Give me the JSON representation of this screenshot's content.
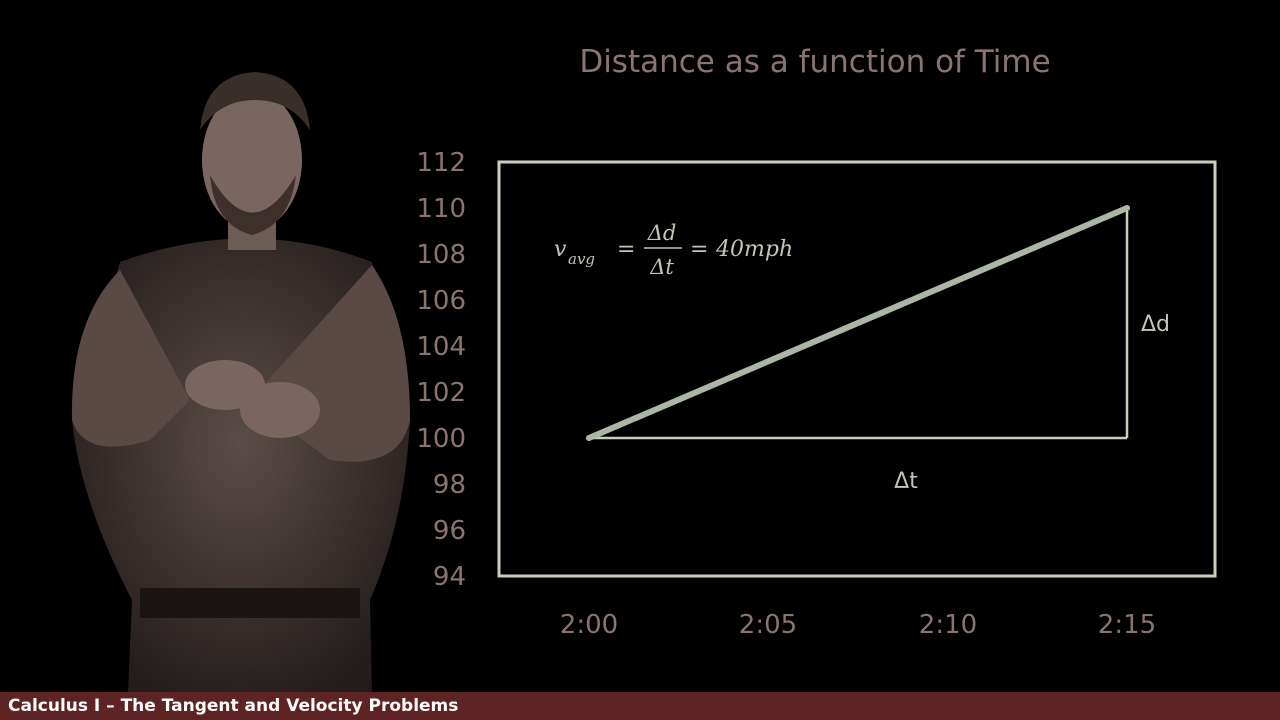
{
  "chart_data": {
    "type": "line",
    "title": "Distance as a function of Time",
    "xlabel": "",
    "ylabel": "",
    "x_ticks": [
      "2:00",
      "2:05",
      "2:10",
      "2:15"
    ],
    "y_ticks": [
      94,
      96,
      98,
      100,
      102,
      104,
      106,
      108,
      110,
      112
    ],
    "ylim": [
      94,
      112
    ],
    "grid": false,
    "series": [
      {
        "x": [
          "2:00",
          "2:15"
        ],
        "y": [
          100,
          110
        ],
        "color": "#a9b7a4"
      }
    ],
    "delta_t_label": "Δt",
    "delta_d_label": "Δd",
    "formula": {
      "lhs": "v",
      "subscript": "avg",
      "equals1": "=",
      "numerator": "Δd",
      "denominator": "Δt",
      "equals2": "=",
      "result": "40mph"
    }
  },
  "caption": "Calculus I – The Tangent and Velocity Problems",
  "colors": {
    "background": "#000000",
    "plot_frame": "#c9cfbd",
    "text_muted": "#8a7470",
    "caption_bar": "#5e2424"
  }
}
